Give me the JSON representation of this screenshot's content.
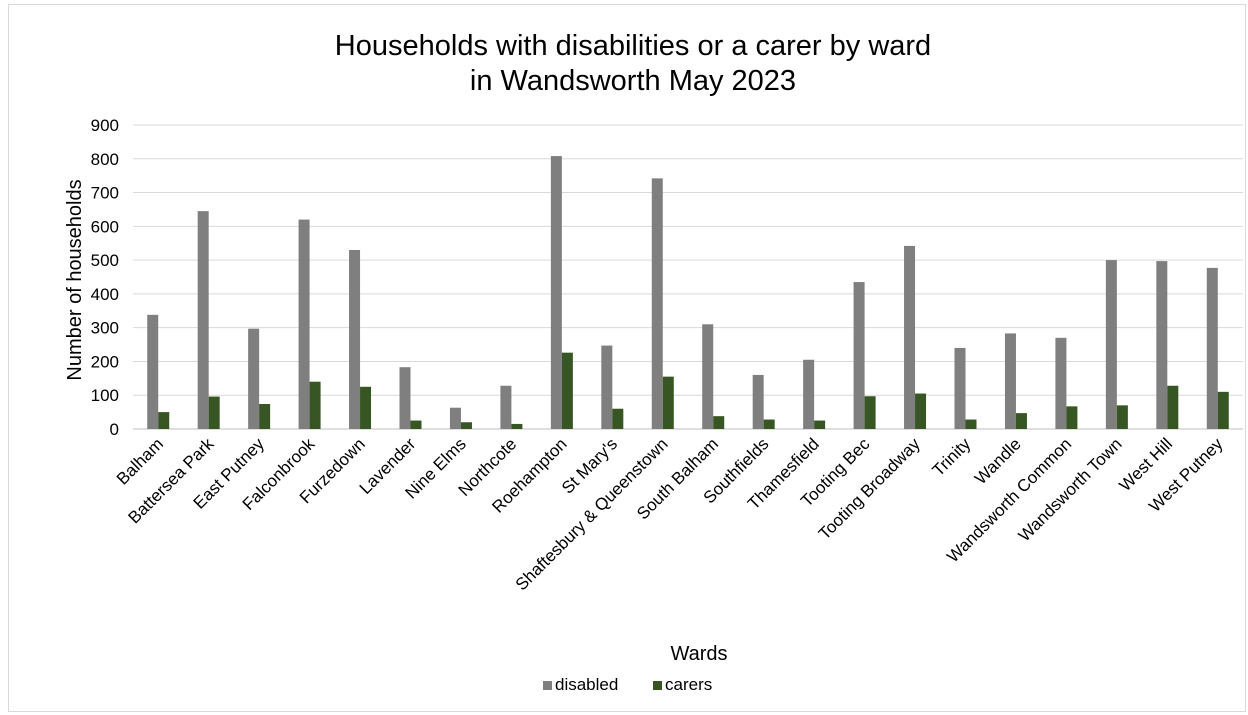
{
  "chart_data": {
    "type": "bar",
    "title": "Households with disabilities or a carer by ward",
    "subtitle": "in Wandsworth May 2023",
    "xlabel": "Wards",
    "ylabel": "Number of households",
    "ylim": [
      0,
      900
    ],
    "yticks": [
      0,
      100,
      200,
      300,
      400,
      500,
      600,
      700,
      800,
      900
    ],
    "grid": true,
    "legend_position": "bottom",
    "categories": [
      "Balham",
      "Battersea Park",
      "East Putney",
      "Falconbrook",
      "Furzedown",
      "Lavender",
      "Nine Elms",
      "Northcote",
      "Roehampton",
      "St Mary's",
      "Shaftesbury & Queenstown",
      "South Balham",
      "Southfields",
      "Thamesfield",
      "Tooting Bec",
      "Tooting Broadway",
      "Trinity",
      "Wandle",
      "Wandsworth Common",
      "Wandsworth Town",
      "West Hill",
      "West Putney"
    ],
    "series": [
      {
        "name": "disabled",
        "color": "#7f7f7f",
        "values": [
          338,
          645,
          297,
          620,
          530,
          183,
          63,
          128,
          808,
          247,
          742,
          310,
          160,
          205,
          435,
          542,
          240,
          283,
          270,
          500,
          497,
          477
        ]
      },
      {
        "name": "carers",
        "color": "#375623",
        "values": [
          50,
          96,
          74,
          140,
          125,
          25,
          20,
          15,
          226,
          60,
          155,
          38,
          28,
          25,
          97,
          105,
          28,
          47,
          67,
          70,
          128,
          110
        ]
      }
    ]
  }
}
